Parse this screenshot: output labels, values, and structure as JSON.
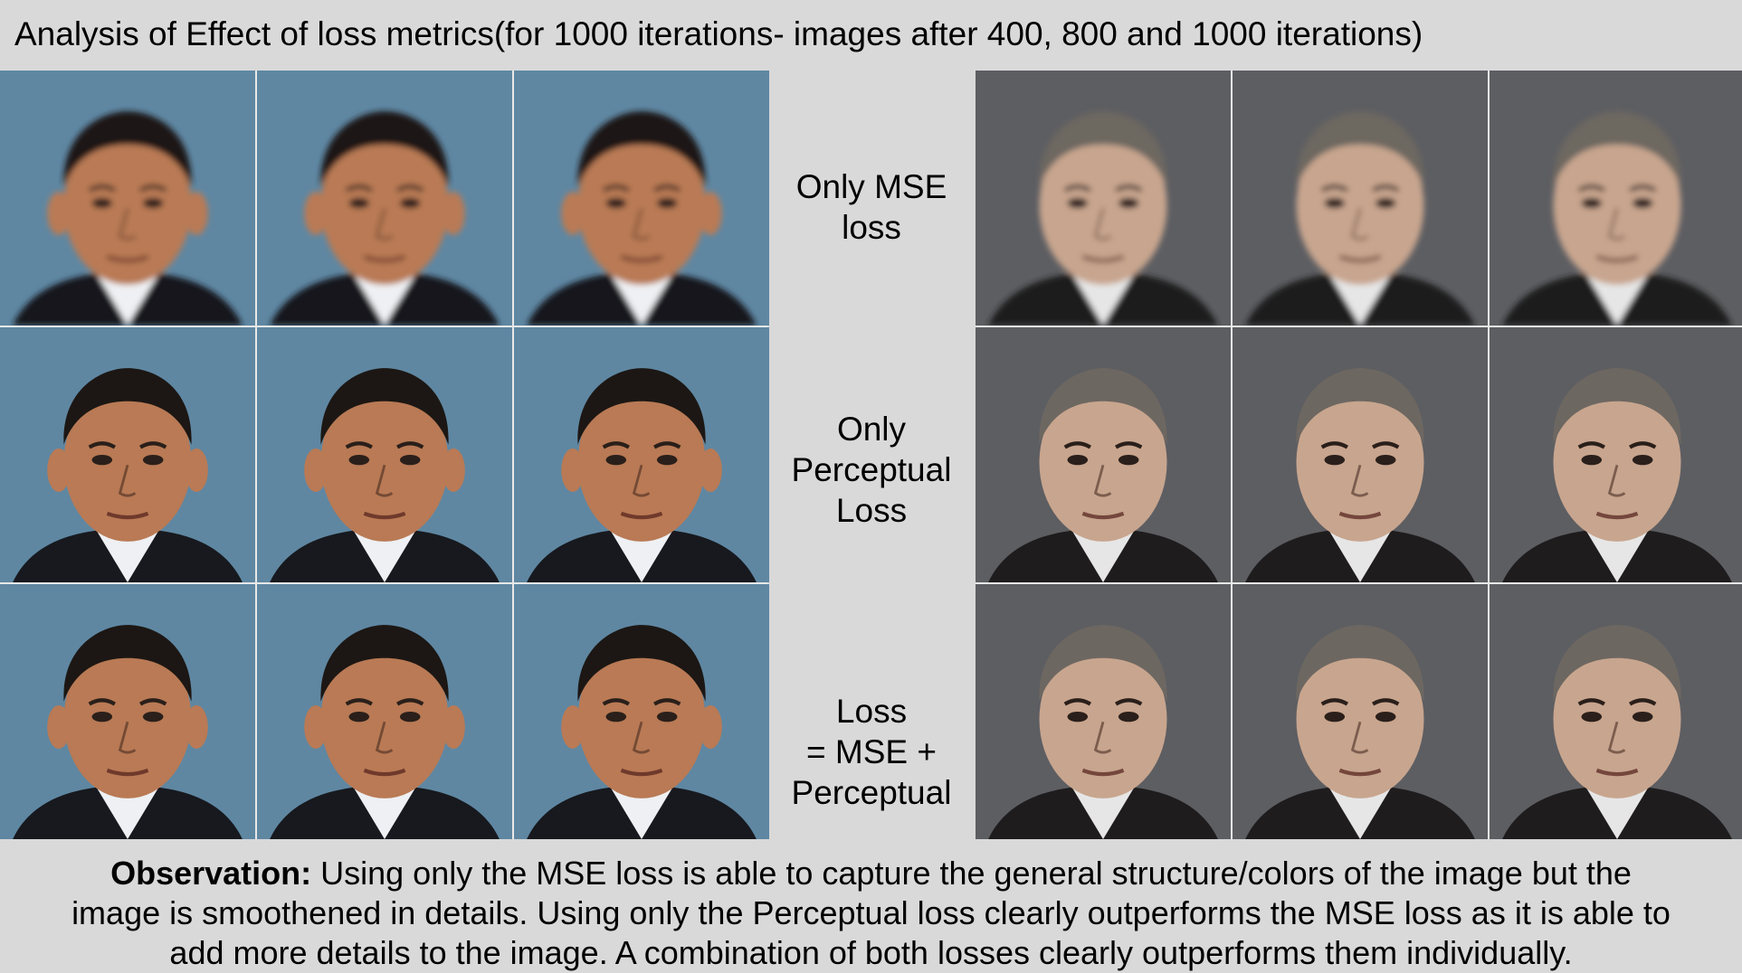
{
  "title": "Analysis of Effect of loss metrics(for 1000 iterations- images after 400, 800 and 1000 iterations)",
  "row_labels": [
    [
      "Only MSE",
      "loss"
    ],
    [
      "Only",
      "Perceptual",
      "Loss"
    ],
    [
      "Loss",
      "= MSE +",
      "Perceptual"
    ]
  ],
  "subjects": {
    "left": {
      "background": "#5f87a2",
      "skin": "#b97a55",
      "hair": "#1c1714",
      "suit": "#17191e",
      "shirt": "#eef0f3"
    },
    "right": {
      "background": "#5d5e62",
      "skin": "#c8a58e",
      "hair": "#6d6761",
      "suit": "#1f1c1d",
      "shirt": "#e6e6e6"
    }
  },
  "observation": {
    "bold": "Observation:",
    "lines": [
      "Using only the MSE loss is able to capture the general structure/colors of the image but the",
      "image is smoothened in details. Using only the Perceptual loss clearly outperforms the MSE loss as it is able to",
      "add more details to the image. A combination of both losses clearly outperforms them individually."
    ]
  }
}
